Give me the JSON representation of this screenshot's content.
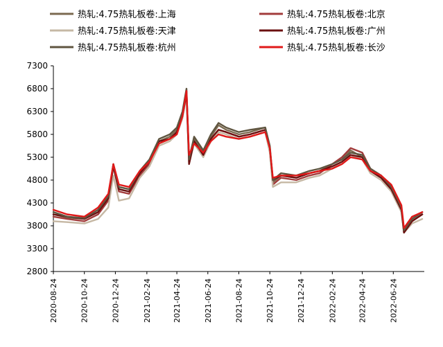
{
  "chart_data": {
    "type": "line",
    "title": "",
    "xlabel": "",
    "ylabel": "",
    "ylim": [
      2800,
      7300
    ],
    "yticks": [
      2800,
      3300,
      3800,
      4300,
      4800,
      5300,
      5800,
      6300,
      6800,
      7300
    ],
    "xlim": [
      "2020-08-24",
      "2022-08-24"
    ],
    "xticks": [
      "2020-08-24",
      "2020-10-24",
      "2020-12-24",
      "2021-02-24",
      "2021-04-24",
      "2021-06-24",
      "2021-08-24",
      "2021-10-24",
      "2021-12-24",
      "2022-02-24",
      "2022-04-24",
      "2022-06-24"
    ],
    "grid": false,
    "legend_position": "top",
    "series": [
      {
        "name": "热轧:4.75热轧板卷:上海",
        "color": "#7b6a50",
        "x": [
          "2020-08-24",
          "2020-09-20",
          "2020-10-24",
          "2020-11-20",
          "2020-12-10",
          "2020-12-20",
          "2020-12-31",
          "2021-01-20",
          "2021-02-10",
          "2021-03-01",
          "2021-03-20",
          "2021-04-10",
          "2021-04-24",
          "2021-05-05",
          "2021-05-13",
          "2021-05-18",
          "2021-05-28",
          "2021-06-15",
          "2021-06-30",
          "2021-07-15",
          "2021-07-30",
          "2021-08-24",
          "2021-09-15",
          "2021-10-15",
          "2021-10-24",
          "2021-10-30",
          "2021-11-15",
          "2021-12-15",
          "2022-01-10",
          "2022-01-30",
          "2022-02-24",
          "2022-03-15",
          "2022-04-01",
          "2022-04-24",
          "2022-05-10",
          "2022-05-31",
          "2022-06-20",
          "2022-07-10",
          "2022-07-15",
          "2022-07-31",
          "2022-08-20"
        ],
        "values": [
          4050,
          3980,
          3950,
          4100,
          4400,
          5150,
          4600,
          4550,
          4950,
          5200,
          5650,
          5750,
          5900,
          6250,
          6750,
          5300,
          5700,
          5400,
          5750,
          6000,
          5900,
          5800,
          5850,
          5950,
          5500,
          4750,
          4900,
          4850,
          4950,
          5000,
          5150,
          5250,
          5450,
          5300,
          5000,
          4850,
          4600,
          4150,
          3650,
          3900,
          4050
        ]
      },
      {
        "name": "热轧:4.75热轧板卷:北京",
        "color": "#a23b3b",
        "x": [
          "2020-08-24",
          "2020-09-20",
          "2020-10-24",
          "2020-11-20",
          "2020-12-10",
          "2020-12-20",
          "2020-12-31",
          "2021-01-20",
          "2021-02-10",
          "2021-03-01",
          "2021-03-20",
          "2021-04-10",
          "2021-04-24",
          "2021-05-05",
          "2021-05-13",
          "2021-05-18",
          "2021-05-28",
          "2021-06-15",
          "2021-06-30",
          "2021-07-15",
          "2021-07-30",
          "2021-08-24",
          "2021-09-15",
          "2021-10-15",
          "2021-10-24",
          "2021-10-30",
          "2021-11-15",
          "2021-12-15",
          "2022-01-10",
          "2022-01-30",
          "2022-02-24",
          "2022-03-15",
          "2022-04-01",
          "2022-04-24",
          "2022-05-10",
          "2022-05-31",
          "2022-06-20",
          "2022-07-10",
          "2022-07-15",
          "2022-07-31",
          "2022-08-20"
        ],
        "values": [
          4000,
          3950,
          3900,
          4050,
          4350,
          5100,
          4550,
          4500,
          4900,
          5150,
          5600,
          5700,
          5850,
          6200,
          6700,
          5200,
          5650,
          5350,
          5700,
          5900,
          5850,
          5750,
          5800,
          5900,
          5450,
          4700,
          4850,
          4800,
          4900,
          4950,
          5150,
          5300,
          5500,
          5400,
          5050,
          4900,
          4650,
          4200,
          3700,
          3950,
          4100
        ]
      },
      {
        "name": "热轧:4.75热轧板卷:天津",
        "color": "#c6b8a4",
        "x": [
          "2020-08-24",
          "2020-09-20",
          "2020-10-24",
          "2020-11-20",
          "2020-12-10",
          "2020-12-20",
          "2020-12-31",
          "2021-01-20",
          "2021-02-10",
          "2021-03-01",
          "2021-03-20",
          "2021-04-10",
          "2021-04-24",
          "2021-05-05",
          "2021-05-13",
          "2021-05-18",
          "2021-05-28",
          "2021-06-15",
          "2021-06-30",
          "2021-07-15",
          "2021-07-30",
          "2021-08-24",
          "2021-09-15",
          "2021-10-15",
          "2021-10-24",
          "2021-10-30",
          "2021-11-15",
          "2021-12-15",
          "2022-01-10",
          "2022-01-30",
          "2022-02-24",
          "2022-03-15",
          "2022-04-01",
          "2022-04-24",
          "2022-05-10",
          "2022-05-31",
          "2022-06-20",
          "2022-07-10",
          "2022-07-15",
          "2022-07-31",
          "2022-08-20"
        ],
        "values": [
          3900,
          3880,
          3850,
          3950,
          4200,
          4900,
          4350,
          4400,
          4850,
          5100,
          5550,
          5650,
          5800,
          6150,
          6650,
          5150,
          5600,
          5300,
          5650,
          5850,
          5800,
          5700,
          5750,
          5850,
          5400,
          4650,
          4750,
          4750,
          4850,
          4900,
          5050,
          5200,
          5350,
          5250,
          4950,
          4800,
          4550,
          4100,
          3650,
          3850,
          3950
        ]
      },
      {
        "name": "热轧:4.75热轧板卷:广州",
        "color": "#6b1010",
        "x": [
          "2020-08-24",
          "2020-09-20",
          "2020-10-24",
          "2020-11-20",
          "2020-12-10",
          "2020-12-20",
          "2020-12-31",
          "2021-01-20",
          "2021-02-10",
          "2021-03-01",
          "2021-03-20",
          "2021-04-10",
          "2021-04-24",
          "2021-05-05",
          "2021-05-13",
          "2021-05-18",
          "2021-05-28",
          "2021-06-15",
          "2021-06-30",
          "2021-07-15",
          "2021-07-30",
          "2021-08-24",
          "2021-09-15",
          "2021-10-15",
          "2021-10-24",
          "2021-10-30",
          "2021-11-15",
          "2021-12-15",
          "2022-01-10",
          "2022-01-30",
          "2022-02-24",
          "2022-03-15",
          "2022-04-01",
          "2022-04-24",
          "2022-05-10",
          "2022-05-31",
          "2022-06-20",
          "2022-07-10",
          "2022-07-15",
          "2022-07-31",
          "2022-08-20"
        ],
        "values": [
          4050,
          4000,
          3950,
          4100,
          4400,
          5100,
          4600,
          4550,
          4950,
          5200,
          5650,
          5700,
          5850,
          6200,
          6700,
          5150,
          5650,
          5350,
          5700,
          5900,
          5850,
          5750,
          5800,
          5900,
          5500,
          4800,
          4900,
          4850,
          4950,
          5000,
          5100,
          5200,
          5350,
          5300,
          5000,
          4850,
          4600,
          4150,
          3650,
          3900,
          4050
        ]
      },
      {
        "name": "热轧:4.75热轧板卷:杭州",
        "color": "#5f5540",
        "x": [
          "2020-08-24",
          "2020-09-20",
          "2020-10-24",
          "2020-11-20",
          "2020-12-10",
          "2020-12-20",
          "2020-12-31",
          "2021-01-20",
          "2021-02-10",
          "2021-03-01",
          "2021-03-20",
          "2021-04-10",
          "2021-04-24",
          "2021-05-05",
          "2021-05-13",
          "2021-05-18",
          "2021-05-28",
          "2021-06-15",
          "2021-06-30",
          "2021-07-15",
          "2021-07-30",
          "2021-08-24",
          "2021-09-15",
          "2021-10-15",
          "2021-10-24",
          "2021-10-30",
          "2021-11-15",
          "2021-12-15",
          "2022-01-10",
          "2022-01-30",
          "2022-02-24",
          "2022-03-15",
          "2022-04-01",
          "2022-04-24",
          "2022-05-10",
          "2022-05-31",
          "2022-06-20",
          "2022-07-10",
          "2022-07-15",
          "2022-07-31",
          "2022-08-20"
        ],
        "values": [
          4100,
          4000,
          3970,
          4150,
          4450,
          5150,
          4650,
          4600,
          5000,
          5250,
          5700,
          5800,
          5950,
          6300,
          6800,
          5250,
          5750,
          5450,
          5800,
          6050,
          5950,
          5850,
          5900,
          5950,
          5550,
          4800,
          4950,
          4900,
          5000,
          5050,
          5150,
          5250,
          5400,
          5350,
          5050,
          4900,
          4650,
          4200,
          3700,
          3950,
          4100
        ]
      },
      {
        "name": "热轧:4.75热轧板卷:长沙",
        "color": "#e01919",
        "x": [
          "2020-08-24",
          "2020-09-20",
          "2020-10-24",
          "2020-11-20",
          "2020-12-10",
          "2020-12-20",
          "2020-12-31",
          "2021-01-20",
          "2021-02-10",
          "2021-03-01",
          "2021-03-20",
          "2021-04-10",
          "2021-04-24",
          "2021-05-05",
          "2021-05-13",
          "2021-05-18",
          "2021-05-28",
          "2021-06-15",
          "2021-06-30",
          "2021-07-15",
          "2021-07-30",
          "2021-08-24",
          "2021-09-15",
          "2021-10-15",
          "2021-10-24",
          "2021-10-30",
          "2021-11-15",
          "2021-12-15",
          "2022-01-10",
          "2022-01-30",
          "2022-02-24",
          "2022-03-15",
          "2022-04-01",
          "2022-04-24",
          "2022-05-10",
          "2022-05-31",
          "2022-06-20",
          "2022-07-10",
          "2022-07-15",
          "2022-07-31",
          "2022-08-20"
        ],
        "values": [
          4150,
          4050,
          4000,
          4200,
          4500,
          5150,
          4700,
          4650,
          5000,
          5200,
          5600,
          5700,
          5800,
          6200,
          6750,
          5350,
          5600,
          5400,
          5650,
          5800,
          5750,
          5700,
          5750,
          5850,
          5500,
          4850,
          4900,
          4900,
          4950,
          5000,
          5050,
          5150,
          5300,
          5250,
          5000,
          4900,
          4700,
          4250,
          3750,
          4000,
          4100
        ]
      }
    ]
  }
}
